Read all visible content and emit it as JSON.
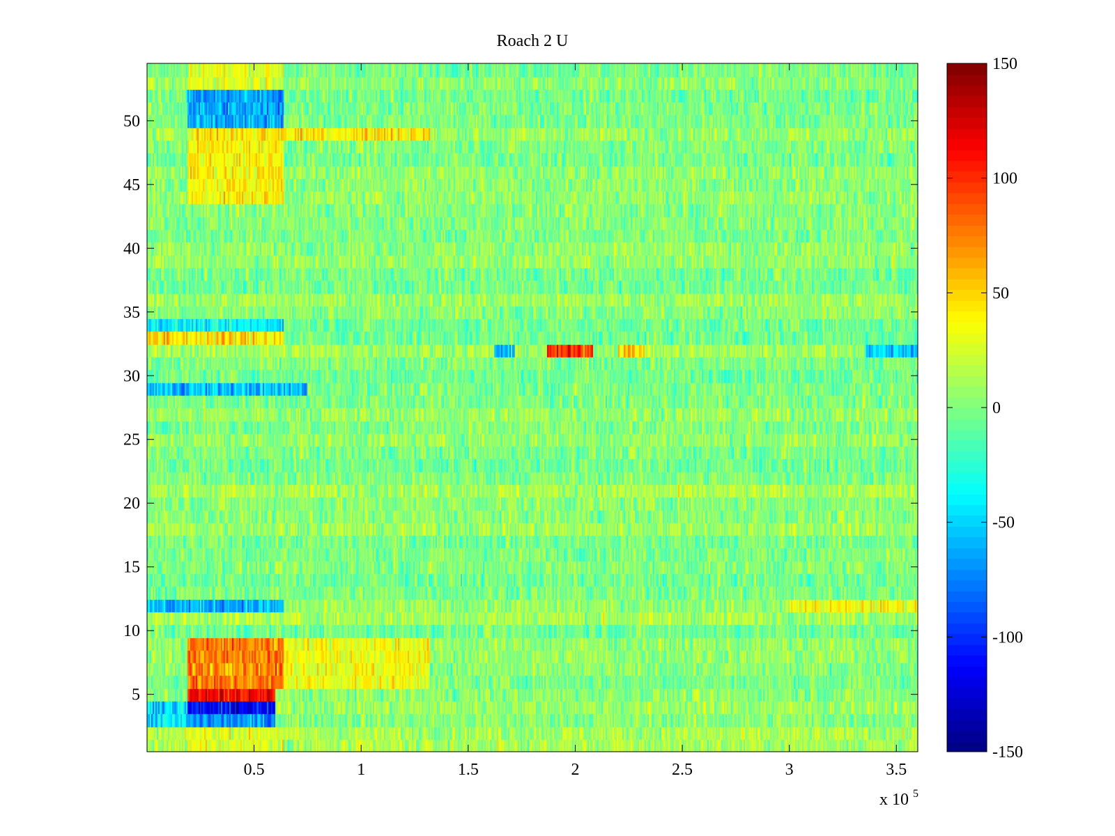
{
  "chart_data": {
    "type": "heatmap",
    "title": "Roach 2 U",
    "xlabel": "",
    "ylabel": "",
    "x_multiplier_label": {
      "prefix": "x 10",
      "exponent": "5"
    },
    "xlim": [
      0,
      3.6
    ],
    "ylim": [
      0.5,
      54.5
    ],
    "x_ticks": [
      0.5,
      1,
      1.5,
      2,
      2.5,
      3,
      3.5
    ],
    "x_tick_labels": [
      "0.5",
      "1",
      "1.5",
      "2",
      "2.5",
      "3",
      "3.5"
    ],
    "y_ticks": [
      5,
      10,
      15,
      20,
      25,
      30,
      35,
      40,
      45,
      50
    ],
    "y_tick_labels": [
      "5",
      "10",
      "15",
      "20",
      "25",
      "30",
      "35",
      "40",
      "45",
      "50"
    ],
    "colormap": "jet",
    "clim": [
      -150,
      150
    ],
    "colorbar_ticks": [
      150,
      100,
      50,
      0,
      -50,
      -100,
      -150
    ],
    "colorbar_tick_labels": [
      "150",
      "100",
      "50",
      "0",
      "-50",
      "-100",
      "-150"
    ],
    "rows": 54,
    "row_patterns": [
      {
        "rows": [
          53,
          54
        ],
        "x_range": [
          0.19,
          0.64
        ],
        "value": 30
      },
      {
        "rows": [
          50,
          51,
          52
        ],
        "x_range": [
          0.19,
          0.64
        ],
        "value": -65
      },
      {
        "rows": [
          49
        ],
        "x_range": [
          0.19,
          1.32
        ],
        "value": 45
      },
      {
        "rows": [
          44,
          45,
          46,
          47,
          48
        ],
        "x_range": [
          0.19,
          0.64
        ],
        "value": 40
      },
      {
        "rows": [
          34
        ],
        "x_range": [
          0.0,
          0.64
        ],
        "value": -40
      },
      {
        "rows": [
          33
        ],
        "x_range": [
          0.0,
          0.64
        ],
        "value": 45
      },
      {
        "rows": [
          32
        ],
        "x_range": [
          1.87,
          2.08
        ],
        "value": 95
      },
      {
        "rows": [
          32
        ],
        "x_range": [
          2.2,
          2.33
        ],
        "value": 50
      },
      {
        "rows": [
          32
        ],
        "x_range": [
          1.62,
          1.72
        ],
        "value": -60
      },
      {
        "rows": [
          32
        ],
        "x_range": [
          3.35,
          3.6
        ],
        "value": -50
      },
      {
        "rows": [
          29
        ],
        "x_range": [
          0.0,
          0.75
        ],
        "value": -55
      },
      {
        "rows": [
          12
        ],
        "x_range": [
          0.0,
          0.64
        ],
        "value": -60
      },
      {
        "rows": [
          12
        ],
        "x_range": [
          3.0,
          3.6
        ],
        "value": 35
      },
      {
        "rows": [
          6,
          7,
          8,
          9
        ],
        "x_range": [
          0.19,
          0.64
        ],
        "value": 75
      },
      {
        "rows": [
          6,
          7,
          8,
          9
        ],
        "x_range": [
          0.64,
          1.32
        ],
        "value": 35
      },
      {
        "rows": [
          5
        ],
        "x_range": [
          0.19,
          0.6
        ],
        "value": 110
      },
      {
        "rows": [
          4
        ],
        "x_range": [
          0.19,
          0.6
        ],
        "value": -115
      },
      {
        "rows": [
          3
        ],
        "x_range": [
          0.19,
          0.6
        ],
        "value": -70
      },
      {
        "rows": [
          3,
          4
        ],
        "x_range": [
          0.0,
          0.19
        ],
        "value": -45
      },
      {
        "rows": [
          1,
          2
        ],
        "x_range": [
          0.19,
          0.64
        ],
        "value": 30
      }
    ]
  }
}
